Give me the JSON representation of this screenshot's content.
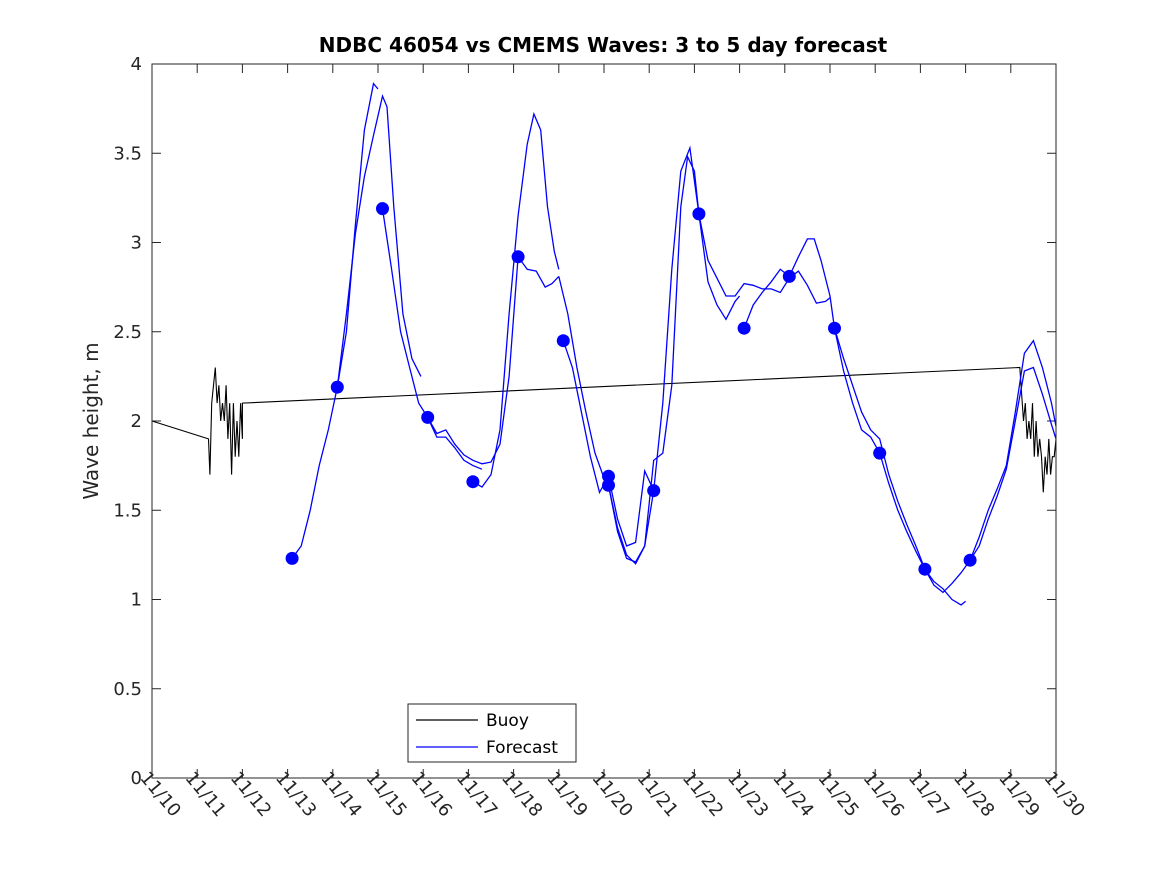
{
  "chart_data": {
    "type": "line",
    "title": "NDBC 46054 vs CMEMS Waves: 3 to 5 day forecast",
    "xlabel": "",
    "ylabel": "Wave height, m",
    "xlim": [
      0,
      20
    ],
    "ylim": [
      0,
      4
    ],
    "x_tick_values": [
      0,
      1,
      2,
      3,
      4,
      5,
      6,
      7,
      8,
      9,
      10,
      11,
      12,
      13,
      14,
      15,
      16,
      17,
      18,
      19,
      20
    ],
    "x_tick_labels": [
      "11/10",
      "11/11",
      "11/12",
      "11/13",
      "11/14",
      "11/15",
      "11/16",
      "11/17",
      "11/18",
      "11/19",
      "11/20",
      "11/21",
      "11/22",
      "11/23",
      "11/24",
      "11/25",
      "11/26",
      "11/27",
      "11/28",
      "11/29",
      "11/30"
    ],
    "y_tick_values": [
      0,
      0.5,
      1,
      1.5,
      2,
      2.5,
      3,
      3.5,
      4
    ],
    "y_tick_labels": [
      "0",
      "0.5",
      "1",
      "1.5",
      "2",
      "2.5",
      "3",
      "3.5",
      "4"
    ],
    "legend": {
      "position": "bottom-center",
      "entries": [
        {
          "label": "Buoy",
          "color": "#000000"
        },
        {
          "label": "Forecast",
          "color": "#0000FF"
        }
      ]
    },
    "series": [
      {
        "name": "Buoy",
        "color": "#000000",
        "points": [
          [
            0,
            2.0
          ],
          [
            1.25,
            1.9
          ],
          [
            1.28,
            1.7
          ],
          [
            1.32,
            2.1
          ],
          [
            1.36,
            2.2
          ],
          [
            1.4,
            2.3
          ],
          [
            1.44,
            2.1
          ],
          [
            1.48,
            2.2
          ],
          [
            1.52,
            2.0
          ],
          [
            1.56,
            2.1
          ],
          [
            1.6,
            2.0
          ],
          [
            1.64,
            2.2
          ],
          [
            1.68,
            1.9
          ],
          [
            1.72,
            2.1
          ],
          [
            1.76,
            1.7
          ],
          [
            1.8,
            2.1
          ],
          [
            1.84,
            1.8
          ],
          [
            1.88,
            2.0
          ],
          [
            1.92,
            1.8
          ],
          [
            1.96,
            2.1
          ],
          [
            2.0,
            1.9
          ],
          [
            2.0,
            2.1
          ],
          [
            19.2,
            2.3
          ],
          [
            19.28,
            2.0
          ],
          [
            19.32,
            2.1
          ],
          [
            19.36,
            1.9
          ],
          [
            19.4,
            2.0
          ],
          [
            19.44,
            1.9
          ],
          [
            19.48,
            2.1
          ],
          [
            19.52,
            1.8
          ],
          [
            19.56,
            2.0
          ],
          [
            19.6,
            1.8
          ],
          [
            19.64,
            1.9
          ],
          [
            19.68,
            1.8
          ],
          [
            19.72,
            1.6
          ],
          [
            19.76,
            1.8
          ],
          [
            19.8,
            1.7
          ],
          [
            19.84,
            1.9
          ],
          [
            19.88,
            1.7
          ],
          [
            19.92,
            1.8
          ],
          [
            19.96,
            1.8
          ],
          [
            20.0,
            1.9
          ]
        ]
      },
      {
        "name": "Forecast",
        "color": "#0000FF",
        "segments": [
          [
            [
              3.1,
              1.23
            ],
            [
              3.3,
              1.3
            ],
            [
              3.5,
              1.5
            ],
            [
              3.7,
              1.75
            ],
            [
              3.9,
              1.95
            ],
            [
              4.1,
              2.19
            ],
            [
              4.3,
              2.6
            ],
            [
              4.5,
              3.05
            ],
            [
              4.7,
              3.37
            ],
            [
              4.9,
              3.6
            ],
            [
              5.1,
              3.82
            ],
            [
              5.2,
              3.76
            ],
            [
              5.35,
              3.2
            ],
            [
              5.55,
              2.6
            ],
            [
              5.75,
              2.35
            ],
            [
              5.95,
              2.25
            ]
          ],
          [
            [
              4.1,
              2.19
            ],
            [
              4.3,
              2.5
            ],
            [
              4.5,
              3.1
            ],
            [
              4.7,
              3.63
            ],
            [
              4.9,
              3.89
            ],
            [
              5.0,
              3.86
            ]
          ],
          [
            [
              5.1,
              3.19
            ],
            [
              5.3,
              2.85
            ],
            [
              5.5,
              2.5
            ],
            [
              5.7,
              2.3
            ],
            [
              5.9,
              2.1
            ],
            [
              6.1,
              2.02
            ],
            [
              6.3,
              1.91
            ],
            [
              6.5,
              1.91
            ],
            [
              6.7,
              1.85
            ],
            [
              6.9,
              1.78
            ],
            [
              7.1,
              1.75
            ],
            [
              7.3,
              1.73
            ]
          ],
          [
            [
              6.1,
              2.02
            ],
            [
              6.3,
              1.93
            ],
            [
              6.5,
              1.95
            ],
            [
              6.7,
              1.87
            ],
            [
              6.9,
              1.81
            ],
            [
              7.1,
              1.78
            ],
            [
              7.3,
              1.76
            ],
            [
              7.5,
              1.77
            ],
            [
              7.7,
              1.87
            ],
            [
              7.9,
              2.25
            ],
            [
              8.1,
              2.92
            ],
            [
              8.3,
              2.85
            ],
            [
              8.5,
              2.84
            ],
            [
              8.7,
              2.75
            ],
            [
              8.85,
              2.77
            ],
            [
              9.0,
              2.81
            ]
          ],
          [
            [
              7.1,
              1.66
            ],
            [
              7.3,
              1.63
            ],
            [
              7.5,
              1.7
            ],
            [
              7.7,
              1.95
            ],
            [
              7.9,
              2.6
            ],
            [
              8.1,
              3.15
            ],
            [
              8.3,
              3.55
            ],
            [
              8.45,
              3.72
            ],
            [
              8.6,
              3.63
            ],
            [
              8.75,
              3.2
            ],
            [
              8.9,
              2.95
            ],
            [
              9.0,
              2.85
            ]
          ],
          [
            [
              9.1,
              2.45
            ],
            [
              9.3,
              2.3
            ],
            [
              9.5,
              2.05
            ],
            [
              9.7,
              1.8
            ],
            [
              9.9,
              1.6
            ],
            [
              10.1,
              1.69
            ],
            [
              10.3,
              1.45
            ],
            [
              10.5,
              1.3
            ],
            [
              10.7,
              1.32
            ],
            [
              10.9,
              1.72
            ],
            [
              11.1,
              1.61
            ]
          ],
          [
            [
              9.0,
              2.81
            ],
            [
              9.2,
              2.6
            ],
            [
              9.4,
              2.3
            ],
            [
              9.6,
              2.05
            ],
            [
              9.8,
              1.82
            ],
            [
              10.0,
              1.68
            ],
            [
              10.1,
              1.64
            ],
            [
              10.3,
              1.4
            ],
            [
              10.5,
              1.25
            ],
            [
              10.7,
              1.2
            ],
            [
              10.9,
              1.3
            ],
            [
              11.1,
              1.61
            ],
            [
              11.3,
              2.1
            ],
            [
              11.5,
              2.85
            ],
            [
              11.7,
              3.4
            ],
            [
              11.9,
              3.53
            ],
            [
              12.1,
              3.16
            ]
          ],
          [
            [
              10.1,
              1.64
            ],
            [
              10.3,
              1.38
            ],
            [
              10.5,
              1.23
            ],
            [
              10.7,
              1.21
            ],
            [
              10.9,
              1.3
            ],
            [
              11.1,
              1.78
            ],
            [
              11.3,
              1.82
            ],
            [
              11.5,
              2.2
            ],
            [
              11.7,
              3.2
            ],
            [
              11.85,
              3.48
            ],
            [
              12.0,
              3.4
            ],
            [
              12.1,
              3.16
            ],
            [
              12.3,
              2.9
            ],
            [
              12.5,
              2.8
            ],
            [
              12.7,
              2.7
            ],
            [
              12.9,
              2.7
            ],
            [
              13.1,
              2.77
            ],
            [
              13.3,
              2.76
            ],
            [
              13.5,
              2.74
            ],
            [
              13.7,
              2.74
            ],
            [
              13.9,
              2.72
            ],
            [
              14.1,
              2.8
            ],
            [
              14.3,
              2.84
            ],
            [
              14.5,
              2.76
            ],
            [
              14.7,
              2.66
            ],
            [
              14.9,
              2.67
            ],
            [
              15.0,
              2.69
            ]
          ],
          [
            [
              12.1,
              3.16
            ],
            [
              12.3,
              2.78
            ],
            [
              12.5,
              2.65
            ],
            [
              12.7,
              2.57
            ],
            [
              12.9,
              2.67
            ],
            [
              13.0,
              2.7
            ]
          ],
          [
            [
              13.1,
              2.52
            ],
            [
              13.3,
              2.65
            ],
            [
              13.5,
              2.72
            ],
            [
              13.7,
              2.78
            ],
            [
              13.9,
              2.85
            ],
            [
              14.1,
              2.81
            ],
            [
              14.3,
              2.92
            ],
            [
              14.5,
              3.02
            ],
            [
              14.65,
              3.02
            ],
            [
              14.8,
              2.9
            ],
            [
              15.0,
              2.7
            ],
            [
              15.1,
              2.52
            ],
            [
              15.3,
              2.35
            ],
            [
              15.5,
              2.2
            ],
            [
              15.7,
              2.05
            ],
            [
              15.9,
              1.95
            ],
            [
              16.1,
              1.9
            ],
            [
              16.3,
              1.7
            ],
            [
              16.5,
              1.55
            ],
            [
              16.7,
              1.42
            ],
            [
              16.9,
              1.3
            ],
            [
              17.1,
              1.17
            ],
            [
              17.3,
              1.1
            ],
            [
              17.5,
              1.06
            ],
            [
              17.7,
              1.0
            ],
            [
              17.9,
              0.97
            ],
            [
              18.0,
              0.99
            ]
          ],
          [
            [
              15.1,
              2.52
            ],
            [
              15.3,
              2.28
            ],
            [
              15.5,
              2.1
            ],
            [
              15.7,
              1.95
            ],
            [
              15.9,
              1.91
            ],
            [
              16.1,
              1.82
            ],
            [
              16.3,
              1.65
            ],
            [
              16.5,
              1.5
            ],
            [
              16.7,
              1.38
            ],
            [
              16.9,
              1.27
            ],
            [
              17.1,
              1.17
            ],
            [
              17.3,
              1.08
            ],
            [
              17.5,
              1.04
            ],
            [
              17.7,
              1.09
            ],
            [
              17.9,
              1.15
            ],
            [
              18.1,
              1.22
            ],
            [
              18.3,
              1.35
            ],
            [
              18.5,
              1.5
            ],
            [
              18.7,
              1.62
            ],
            [
              18.9,
              1.75
            ],
            [
              19.1,
              2.05
            ],
            [
              19.3,
              2.38
            ],
            [
              19.5,
              2.45
            ],
            [
              19.7,
              2.3
            ],
            [
              19.9,
              2.1
            ],
            [
              20.0,
              1.97
            ]
          ],
          [
            [
              18.1,
              1.22
            ],
            [
              18.3,
              1.3
            ],
            [
              18.5,
              1.45
            ],
            [
              18.7,
              1.58
            ],
            [
              18.9,
              1.73
            ],
            [
              19.1,
              2.0
            ],
            [
              19.3,
              2.28
            ],
            [
              19.5,
              2.3
            ],
            [
              19.7,
              2.15
            ],
            [
              19.9,
              1.98
            ],
            [
              20.0,
              1.9
            ]
          ]
        ],
        "markers": [
          [
            3.1,
            1.23
          ],
          [
            4.1,
            2.19
          ],
          [
            5.1,
            3.19
          ],
          [
            6.1,
            2.02
          ],
          [
            7.1,
            1.66
          ],
          [
            8.1,
            2.92
          ],
          [
            9.1,
            2.45
          ],
          [
            10.1,
            1.69
          ],
          [
            10.1,
            1.64
          ],
          [
            11.1,
            1.61
          ],
          [
            12.1,
            3.16
          ],
          [
            13.1,
            2.52
          ],
          [
            14.1,
            2.81
          ],
          [
            15.1,
            2.52
          ],
          [
            16.1,
            1.82
          ],
          [
            17.1,
            1.17
          ],
          [
            18.1,
            1.22
          ]
        ]
      }
    ]
  }
}
